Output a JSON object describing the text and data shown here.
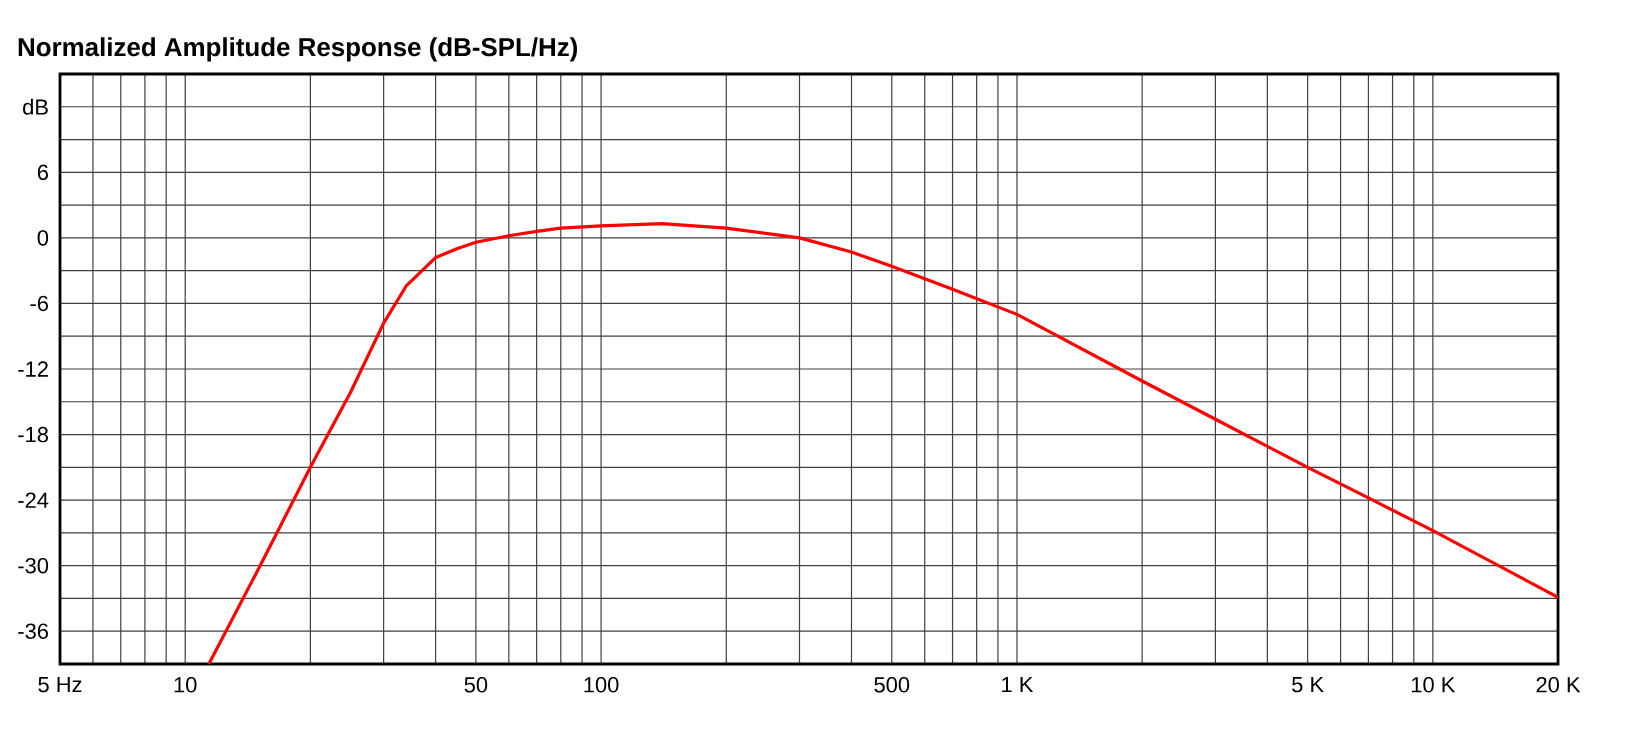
{
  "chart_data": {
    "type": "line",
    "title": "Normalized Amplitude Response (dB-SPL/Hz)",
    "log": "x",
    "grid": true,
    "marker": "none",
    "line_style": "solid",
    "xlim": [
      5,
      20000
    ],
    "ylim": [
      -39,
      15
    ],
    "xticks": [
      {
        "value": 5,
        "label": "5 Hz"
      },
      {
        "value": 6,
        "label": null
      },
      {
        "value": 7,
        "label": null
      },
      {
        "value": 8,
        "label": null
      },
      {
        "value": 9,
        "label": null
      },
      10,
      {
        "value": 20,
        "label": null
      },
      {
        "value": 30,
        "label": null
      },
      {
        "value": 40,
        "label": null
      },
      50,
      {
        "value": 60,
        "label": null
      },
      {
        "value": 70,
        "label": null
      },
      {
        "value": 80,
        "label": null
      },
      {
        "value": 90,
        "label": null
      },
      100,
      {
        "value": 200,
        "label": null
      },
      {
        "value": 300,
        "label": null
      },
      {
        "value": 400,
        "label": null
      },
      500,
      {
        "value": 600,
        "label": null
      },
      {
        "value": 700,
        "label": null
      },
      {
        "value": 800,
        "label": null
      },
      {
        "value": 900,
        "label": null
      },
      {
        "value": 1000,
        "label": "1 K"
      },
      {
        "value": 2000,
        "label": null
      },
      {
        "value": 3000,
        "label": null
      },
      {
        "value": 4000,
        "label": null
      },
      {
        "value": 5000,
        "label": "5 K"
      },
      {
        "value": 6000,
        "label": null
      },
      {
        "value": 7000,
        "label": null
      },
      {
        "value": 8000,
        "label": null
      },
      {
        "value": 9000,
        "label": null
      },
      {
        "value": 10000,
        "label": "10 K"
      },
      {
        "value": 20000,
        "label": "20 K"
      }
    ],
    "yticks": [
      {
        "value": 12,
        "label": "dB"
      },
      {
        "value": 9,
        "label": null
      },
      6,
      {
        "value": 3,
        "label": null
      },
      0,
      {
        "value": -3,
        "label": null
      },
      -6,
      {
        "value": -9,
        "label": null
      },
      -12,
      {
        "value": -15,
        "label": null
      },
      -18,
      {
        "value": -21,
        "label": null
      },
      -24,
      {
        "value": -27,
        "label": null
      },
      -30,
      {
        "value": -33,
        "label": null
      },
      -36
    ],
    "x": [
      11.4,
      15,
      20,
      25,
      30,
      34,
      40,
      45,
      50,
      60,
      70,
      80,
      100,
      140,
      200,
      300,
      400,
      500,
      700,
      1000,
      2000,
      3000,
      5000,
      7000,
      10000,
      20000
    ],
    "series": [
      {
        "color": "#ff0000",
        "values": [
          -39,
          -30.3,
          -21,
          -14.1,
          -7.8,
          -4.4,
          -1.8,
          -1.0,
          -0.4,
          0.2,
          0.6,
          0.9,
          1.1,
          1.3,
          0.9,
          0,
          -1.3,
          -2.6,
          -4.7,
          -7,
          -13.1,
          -16.6,
          -21,
          -23.8,
          -26.8,
          -32.9
        ]
      }
    ]
  }
}
